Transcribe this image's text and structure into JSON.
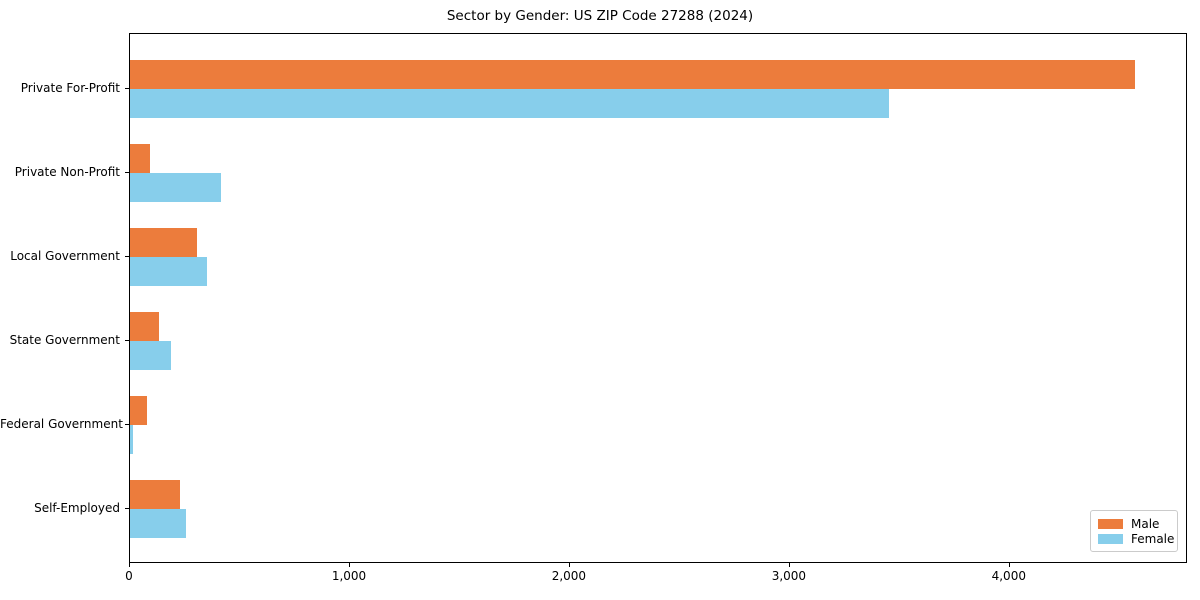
{
  "title": "Sector by Gender: US ZIP Code 27288 (2024)",
  "chart_data": {
    "type": "bar",
    "orientation": "horizontal",
    "title": "Sector by Gender: US ZIP Code 27288 (2024)",
    "categories": [
      "Private For-Profit",
      "Private Non-Profit",
      "Local Government",
      "State Government",
      "Federal Government",
      "Self-Employed"
    ],
    "series": [
      {
        "name": "Male",
        "color": "#ec7c3c",
        "values": [
          4570,
          90,
          305,
          130,
          75,
          225
        ]
      },
      {
        "name": "Female",
        "color": "#87ceeb",
        "values": [
          3450,
          415,
          350,
          185,
          15,
          255
        ]
      }
    ],
    "xlabel": "",
    "ylabel": "",
    "xlim": [
      0,
      4810
    ],
    "xticks": [
      0,
      1000,
      2000,
      3000,
      4000
    ],
    "xtick_labels": [
      "0",
      "1,000",
      "2,000",
      "3,000",
      "4,000"
    ],
    "legend_position": "lower right",
    "grid": false,
    "frame": true
  }
}
